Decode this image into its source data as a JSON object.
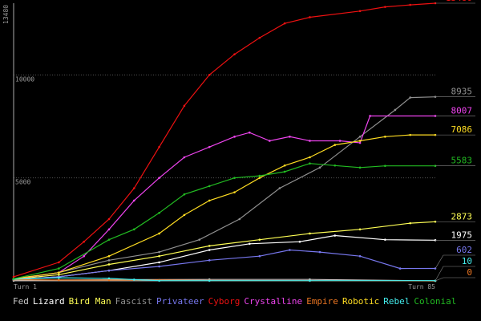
{
  "chart_data": {
    "type": "line",
    "title": "",
    "xlabel": "",
    "ylabel": "",
    "x_ticks": [
      "Turn 1",
      "Turn 85"
    ],
    "xlim": [
      1,
      85
    ],
    "ylim": [
      0,
      13480
    ],
    "y_ticks": [
      {
        "value": 13480,
        "label": "13480",
        "style": "axis-top"
      },
      {
        "value": 10000,
        "label": "10000",
        "style": "gridline"
      },
      {
        "value": 5000,
        "label": "5000",
        "style": "gridline"
      }
    ],
    "grid": true,
    "legend_position": "bottom",
    "series": [
      {
        "name": "Fed",
        "color": "#c8c8c8",
        "points": [
          [
            1,
            10
          ],
          [
            10,
            40
          ],
          [
            20,
            60
          ],
          [
            40,
            70
          ],
          [
            60,
            70
          ],
          [
            85,
            0
          ]
        ],
        "end_label": ""
      },
      {
        "name": "Lizard",
        "color": "#ffffff",
        "points": [
          [
            1,
            60
          ],
          [
            10,
            200
          ],
          [
            20,
            500
          ],
          [
            30,
            900
          ],
          [
            40,
            1500
          ],
          [
            48,
            1800
          ],
          [
            58,
            1900
          ],
          [
            65,
            2200
          ],
          [
            75,
            2000
          ],
          [
            85,
            1975
          ]
        ],
        "end_label": "1975"
      },
      {
        "name": "Bird Man",
        "color": "#ffff55",
        "points": [
          [
            1,
            80
          ],
          [
            10,
            300
          ],
          [
            20,
            800
          ],
          [
            30,
            1200
          ],
          [
            40,
            1700
          ],
          [
            50,
            2000
          ],
          [
            60,
            2300
          ],
          [
            70,
            2500
          ],
          [
            80,
            2800
          ],
          [
            85,
            2873
          ]
        ],
        "end_label": "2873"
      },
      {
        "name": "Fascist",
        "color": "#909090",
        "points": [
          [
            1,
            100
          ],
          [
            10,
            400
          ],
          [
            20,
            1000
          ],
          [
            30,
            1400
          ],
          [
            38,
            2000
          ],
          [
            46,
            3000
          ],
          [
            54,
            4500
          ],
          [
            62,
            5500
          ],
          [
            70,
            7000
          ],
          [
            77,
            8300
          ],
          [
            80,
            8900
          ],
          [
            85,
            8935
          ]
        ],
        "end_label": "8935"
      },
      {
        "name": "Privateer",
        "color": "#7777ee",
        "points": [
          [
            1,
            60
          ],
          [
            10,
            200
          ],
          [
            20,
            500
          ],
          [
            30,
            700
          ],
          [
            40,
            1000
          ],
          [
            50,
            1200
          ],
          [
            56,
            1500
          ],
          [
            62,
            1400
          ],
          [
            70,
            1200
          ],
          [
            78,
            600
          ],
          [
            85,
            602
          ]
        ],
        "end_label": "602"
      },
      {
        "name": "Cyborg",
        "color": "#ee1111",
        "points": [
          [
            1,
            200
          ],
          [
            10,
            900
          ],
          [
            15,
            1900
          ],
          [
            20,
            3000
          ],
          [
            25,
            4500
          ],
          [
            30,
            6500
          ],
          [
            35,
            8500
          ],
          [
            40,
            10000
          ],
          [
            45,
            11000
          ],
          [
            50,
            11800
          ],
          [
            55,
            12500
          ],
          [
            60,
            12800
          ],
          [
            70,
            13100
          ],
          [
            75,
            13300
          ],
          [
            80,
            13400
          ],
          [
            85,
            13480
          ]
        ],
        "end_label": "13480"
      },
      {
        "name": "Crystalline",
        "color": "#ee44ee",
        "points": [
          [
            1,
            80
          ],
          [
            10,
            400
          ],
          [
            15,
            1200
          ],
          [
            20,
            2500
          ],
          [
            25,
            3900
          ],
          [
            30,
            5000
          ],
          [
            35,
            6000
          ],
          [
            40,
            6500
          ],
          [
            45,
            7000
          ],
          [
            48,
            7200
          ],
          [
            52,
            6800
          ],
          [
            56,
            7000
          ],
          [
            60,
            6800
          ],
          [
            66,
            6800
          ],
          [
            70,
            6700
          ],
          [
            72,
            8007
          ],
          [
            85,
            8007
          ]
        ],
        "end_label": "8007"
      },
      {
        "name": "Empire",
        "color": "#ee7722",
        "points": [
          [
            1,
            60
          ],
          [
            10,
            40
          ],
          [
            20,
            40
          ],
          [
            30,
            40
          ],
          [
            40,
            20
          ],
          [
            60,
            10
          ],
          [
            85,
            0
          ]
        ],
        "end_label": "0"
      },
      {
        "name": "Robotic",
        "color": "#ffdd22",
        "points": [
          [
            1,
            100
          ],
          [
            10,
            400
          ],
          [
            20,
            1200
          ],
          [
            30,
            2300
          ],
          [
            35,
            3200
          ],
          [
            40,
            3900
          ],
          [
            45,
            4300
          ],
          [
            50,
            5000
          ],
          [
            55,
            5600
          ],
          [
            60,
            6000
          ],
          [
            65,
            6600
          ],
          [
            70,
            6800
          ],
          [
            75,
            7000
          ],
          [
            80,
            7086
          ],
          [
            85,
            7086
          ]
        ],
        "end_label": "7086"
      },
      {
        "name": "Rebel",
        "color": "#44eeee",
        "points": [
          [
            1,
            80
          ],
          [
            10,
            150
          ],
          [
            20,
            120
          ],
          [
            25,
            60
          ],
          [
            30,
            10
          ],
          [
            40,
            10
          ],
          [
            60,
            10
          ],
          [
            85,
            10
          ]
        ],
        "end_label": "10"
      },
      {
        "name": "Colonial",
        "color": "#22bb22",
        "points": [
          [
            1,
            100
          ],
          [
            10,
            600
          ],
          [
            20,
            2000
          ],
          [
            25,
            2500
          ],
          [
            30,
            3300
          ],
          [
            35,
            4200
          ],
          [
            40,
            4600
          ],
          [
            45,
            5000
          ],
          [
            50,
            5100
          ],
          [
            55,
            5300
          ],
          [
            60,
            5700
          ],
          [
            65,
            5600
          ],
          [
            70,
            5500
          ],
          [
            75,
            5583
          ],
          [
            85,
            5583
          ]
        ],
        "end_label": "5583"
      }
    ]
  }
}
